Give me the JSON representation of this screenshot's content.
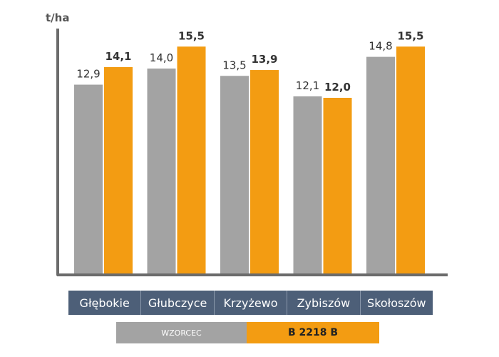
{
  "chart_data": {
    "type": "bar",
    "ylabel": "t/ha",
    "ylim": [
      0,
      16
    ],
    "categories": [
      "Głębokie",
      "Głubczyce",
      "Krzyżewo",
      "Zybiszów",
      "Skołoszów"
    ],
    "series": [
      {
        "name": "WZORCEC",
        "color": "#a3a3a3",
        "values": [
          12.9,
          14.0,
          13.5,
          12.1,
          14.8
        ],
        "labels": [
          "12,9",
          "14,0",
          "13,5",
          "12,1",
          "14,8"
        ]
      },
      {
        "name": "B 2218 B",
        "color": "#f39c12",
        "values": [
          14.1,
          15.5,
          13.9,
          12.0,
          15.5
        ],
        "labels": [
          "14,1",
          "15,5",
          "13,9",
          "12,0",
          "15,5"
        ]
      }
    ]
  }
}
